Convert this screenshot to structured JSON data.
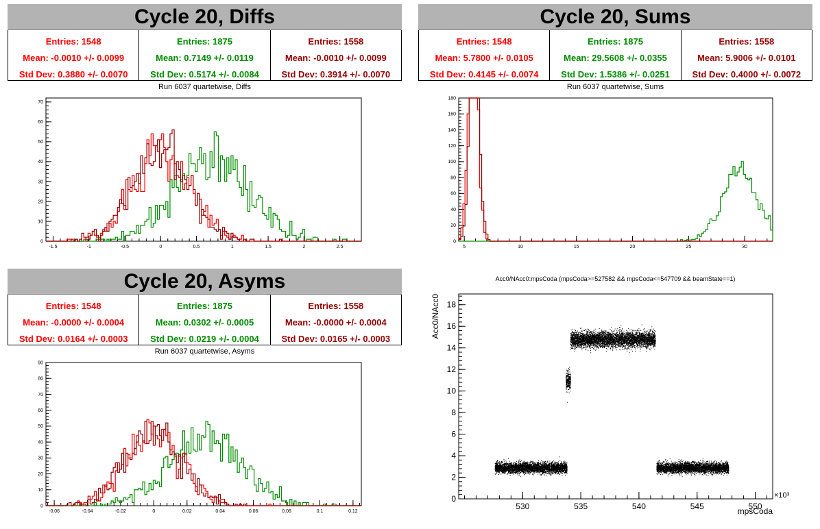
{
  "panels": {
    "diffs": {
      "title": "Cycle 20, Diffs",
      "subtitle": "Run 6037 quartetwise, Diffs",
      "stats": [
        {
          "entries": "Entries: 1548",
          "mean": "Mean: -0.0010 +/- 0.0099",
          "std": "Std Dev: 0.3880 +/- 0.0070",
          "color": "#ff0000"
        },
        {
          "entries": "Entries: 1875",
          "mean": "Mean: 0.7149 +/- 0.0119",
          "std": "Std Dev: 0.5174 +/- 0.0084",
          "color": "#008c00"
        },
        {
          "entries": "Entries: 1558",
          "mean": "Mean: -0.0010 +/- 0.0099",
          "std": "Std Dev: 0.3914 +/- 0.0070",
          "color": "#960000"
        }
      ]
    },
    "sums": {
      "title": "Cycle 20, Sums",
      "subtitle": "Run 6037 quartetwise, Sums",
      "stats": [
        {
          "entries": "Entries: 1548",
          "mean": "Mean: 5.7800 +/- 0.0105",
          "std": "Std Dev: 0.4145 +/- 0.0074",
          "color": "#ff0000"
        },
        {
          "entries": "Entries: 1875",
          "mean": "Mean: 29.5608 +/- 0.0355",
          "std": "Std Dev: 1.5386 +/- 0.0251",
          "color": "#008c00"
        },
        {
          "entries": "Entries: 1558",
          "mean": "Mean: 5.9006 +/- 0.0101",
          "std": "Std Dev: 0.4000 +/- 0.0072",
          "color": "#960000"
        }
      ]
    },
    "asyms": {
      "title": "Cycle 20, Asyms",
      "subtitle": "Run 6037 quartetwise, Asyms",
      "stats": [
        {
          "entries": "Entries: 1548",
          "mean": "Mean: -0.0000 +/- 0.0004",
          "std": "Std Dev: 0.0164 +/- 0.0003",
          "color": "#ff0000"
        },
        {
          "entries": "Entries: 1875",
          "mean": "Mean: 0.0302 +/- 0.0005",
          "std": "Std Dev: 0.0219 +/- 0.0004",
          "color": "#008c00"
        },
        {
          "entries": "Entries: 1558",
          "mean": "Mean: -0.0000 +/- 0.0004",
          "std": "Std Dev: 0.0165 +/- 0.0003",
          "color": "#960000"
        }
      ]
    },
    "scatter": {
      "subtitle": "Acc0/NAcc0:mpsCoda (mpsCoda>=527582 && mpsCoda<=547709 && beamState==1)"
    }
  },
  "chart_data": [
    {
      "id": "diffs",
      "type": "histogram",
      "title": "Run 6037 quartetwise, Diffs",
      "xlim": [
        -1.6,
        2.8
      ],
      "ylim": [
        0,
        72
      ],
      "xticks": [
        -1.5,
        -1,
        -0.5,
        0,
        0.5,
        1,
        1.5,
        2,
        2.5
      ],
      "xtick_labels": [
        "-1.5",
        "-1",
        "-0.5",
        "0",
        "0.5",
        "1",
        "1.5",
        "2",
        "2.5"
      ],
      "yticks": [
        0,
        10,
        20,
        30,
        40,
        50,
        60,
        70
      ],
      "series": [
        {
          "color": "#ff0000",
          "entries": 1548,
          "mean": -0.001,
          "std": 0.388
        },
        {
          "color": "#008c00",
          "entries": 1875,
          "mean": 0.7149,
          "std": 0.5174
        },
        {
          "color": "#960000",
          "entries": 1558,
          "mean": -0.001,
          "std": 0.3914
        }
      ]
    },
    {
      "id": "sums",
      "type": "histogram",
      "title": "Run 6037 quartetwise, Sums",
      "xlim": [
        4.5,
        32.5
      ],
      "ylim": [
        0,
        180
      ],
      "xticks": [
        5,
        10,
        15,
        20,
        25,
        30
      ],
      "xtick_labels": [
        "5",
        "10",
        "15",
        "20",
        "25",
        "30"
      ],
      "yticks": [
        0,
        20,
        40,
        60,
        80,
        100,
        120,
        140,
        160,
        180
      ],
      "series": [
        {
          "color": "#ff0000",
          "entries": 1548,
          "mean": 5.78,
          "std": 0.4145
        },
        {
          "color": "#008c00",
          "entries": 1875,
          "mean": 29.5608,
          "std": 1.5386
        },
        {
          "color": "#960000",
          "entries": 1558,
          "mean": 5.9006,
          "std": 0.4
        }
      ]
    },
    {
      "id": "asyms",
      "type": "histogram",
      "title": "Run 6037 quartetwise, Asyms",
      "xlim": [
        -0.065,
        0.125
      ],
      "ylim": [
        0,
        90
      ],
      "xticks": [
        -0.06,
        -0.04,
        -0.02,
        0,
        0.02,
        0.04,
        0.06,
        0.08,
        0.1,
        0.12
      ],
      "xtick_labels": [
        "-0.06",
        "-0.04",
        "-0.02",
        "0",
        "0.02",
        "0.04",
        "0.06",
        "0.08",
        "0.1",
        "0.12"
      ],
      "yticks": [
        0,
        10,
        20,
        30,
        40,
        50,
        60,
        70,
        80,
        90
      ],
      "series": [
        {
          "color": "#ff0000",
          "entries": 1548,
          "mean": 0.0,
          "std": 0.0164
        },
        {
          "color": "#008c00",
          "entries": 1875,
          "mean": 0.0302,
          "std": 0.0219
        },
        {
          "color": "#960000",
          "entries": 1558,
          "mean": 0.0,
          "std": 0.0165
        }
      ]
    },
    {
      "id": "scatter",
      "type": "scatter",
      "title": "Acc0/NAcc0:mpsCoda (mpsCoda>=527582 && mpsCoda<=547709 && beamState==1)",
      "xlabel": "mpsCoda",
      "ylabel": "Acc0/NAcc0",
      "x_multiplier": "×10³",
      "xlim": [
        524.5,
        551.5
      ],
      "ylim": [
        0,
        19
      ],
      "xticks": [
        530,
        535,
        540,
        545,
        550
      ],
      "xtick_labels": [
        "530",
        "535",
        "540",
        "545",
        "550"
      ],
      "yticks": [
        0,
        2,
        4,
        6,
        8,
        10,
        12,
        14,
        16,
        18
      ],
      "ytick_labels": [
        "0",
        "2",
        "4",
        "6",
        "8",
        "10",
        "12",
        "14",
        "16",
        "18"
      ],
      "clusters": [
        {
          "x": [
            527.6,
            533.8
          ],
          "y_center": 2.9,
          "y_spread": 0.4
        },
        {
          "x": [
            533.7,
            534.1
          ],
          "y_center": 11.0,
          "y_spread": 0.7
        },
        {
          "x": [
            534.1,
            541.4
          ],
          "y_center": 14.8,
          "y_spread": 0.6
        },
        {
          "x": [
            541.5,
            547.7
          ],
          "y_center": 2.9,
          "y_spread": 0.4
        }
      ]
    }
  ]
}
